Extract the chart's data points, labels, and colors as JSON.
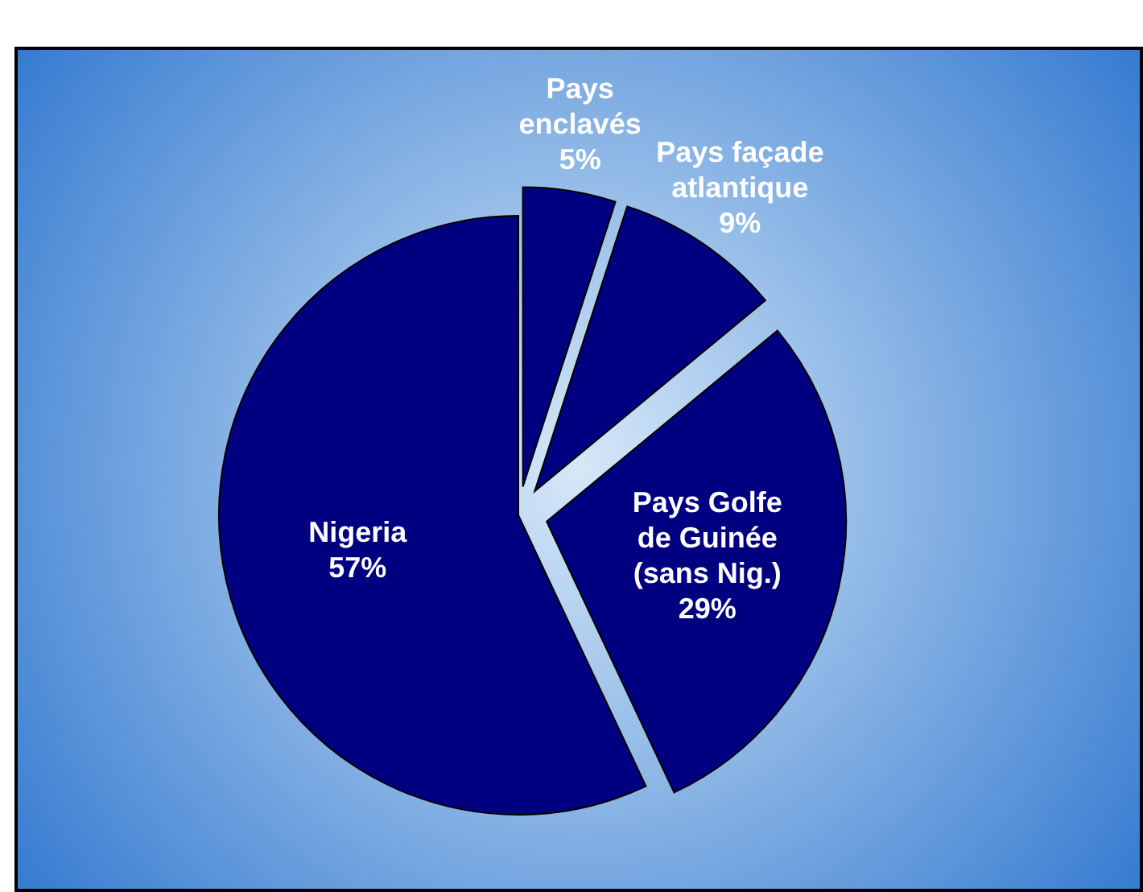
{
  "chart_data": {
    "type": "pie",
    "categories": [
      "Pays enclavés",
      "Pays façade atlantique",
      "Pays Golfe de Guinée (sans Nig.)",
      "Nigeria"
    ],
    "values": [
      5,
      9,
      29,
      57
    ],
    "colors": [
      "#000080",
      "#000080",
      "#000080",
      "#000080"
    ],
    "value_labels": [
      "5%",
      "9%",
      "29%",
      "57%"
    ]
  }
}
